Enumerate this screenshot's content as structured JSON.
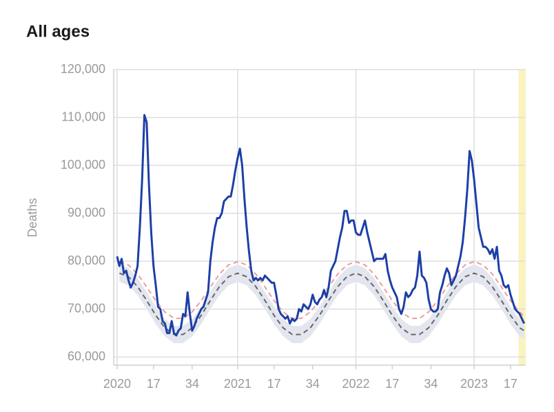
{
  "chart_data": {
    "type": "line",
    "title": "All ages",
    "y_label": "Deaths",
    "xlim": [
      -1.5,
      179.7
    ],
    "ylim": [
      58300,
      120000
    ],
    "xticks": [
      {
        "value": 0,
        "label": "2020"
      },
      {
        "value": 16,
        "label": "17"
      },
      {
        "value": 33,
        "label": "34"
      },
      {
        "value": 53,
        "label": "2021"
      },
      {
        "value": 69,
        "label": "17"
      },
      {
        "value": 86,
        "label": "34"
      },
      {
        "value": 105,
        "label": "2022"
      },
      {
        "value": 121,
        "label": "17"
      },
      {
        "value": 138,
        "label": "34"
      },
      {
        "value": 157,
        "label": "2023"
      },
      {
        "value": 173,
        "label": "17"
      }
    ],
    "xgrid": [
      0,
      53,
      105,
      157
    ],
    "yticks": [
      {
        "value": 60000,
        "label": "60,000"
      },
      {
        "value": 70000,
        "label": "70,000"
      },
      {
        "value": 80000,
        "label": "80,000"
      },
      {
        "value": 90000,
        "label": "90,000"
      },
      {
        "value": 100000,
        "label": "100,000"
      },
      {
        "value": 110000,
        "label": "110,000"
      },
      {
        "value": 120000,
        "label": "120,000"
      }
    ],
    "grid": true,
    "highlight": {
      "range": [
        176.5,
        179.7
      ],
      "color": "#fbf3bf"
    },
    "band": {
      "color": "#e3e6ee",
      "x": [
        1,
        5,
        9,
        13,
        17,
        21,
        25,
        29,
        33,
        37,
        41,
        45,
        49,
        53,
        57,
        61,
        65,
        69,
        73,
        77,
        81,
        85,
        89,
        93,
        97,
        101,
        105,
        109,
        113,
        117,
        121,
        125,
        129,
        133,
        137,
        141,
        145,
        149,
        153,
        157,
        161,
        165,
        169,
        173,
        177,
        179
      ],
      "lower": [
        75700,
        74950,
        72900,
        70000,
        66900,
        64300,
        62900,
        62900,
        64300,
        66900,
        70000,
        72900,
        74950,
        75700,
        74950,
        72900,
        70000,
        66900,
        64300,
        62900,
        62900,
        64300,
        66900,
        70000,
        72900,
        74950,
        75700,
        74950,
        72900,
        70000,
        66900,
        64300,
        62900,
        62900,
        64300,
        66900,
        70000,
        72900,
        74950,
        75700,
        74950,
        72900,
        70000,
        66900,
        64300,
        63700
      ],
      "upper": [
        79300,
        78550,
        76500,
        73600,
        70500,
        67900,
        66500,
        66500,
        67900,
        70500,
        73600,
        76500,
        78550,
        79300,
        78550,
        76500,
        73600,
        70500,
        67900,
        66500,
        66500,
        67900,
        70500,
        73600,
        76500,
        78550,
        79300,
        78550,
        76500,
        73600,
        70500,
        67900,
        66500,
        66500,
        67900,
        70500,
        73600,
        76500,
        78550,
        79300,
        78550,
        76500,
        73600,
        70500,
        67900,
        67300
      ]
    },
    "x": [
      0,
      1,
      2,
      3,
      4,
      5,
      6,
      7,
      8,
      9,
      10,
      11,
      12,
      13,
      14,
      15,
      16,
      17,
      18,
      19,
      20,
      21,
      22,
      23,
      24,
      25,
      26,
      27,
      28,
      29,
      30,
      31,
      32,
      33,
      34,
      35,
      36,
      37,
      38,
      39,
      40,
      41,
      42,
      43,
      44,
      45,
      46,
      47,
      48,
      49,
      50,
      51,
      52,
      53,
      54,
      55,
      56,
      57,
      58,
      59,
      60,
      61,
      62,
      63,
      64,
      65,
      66,
      67,
      68,
      69,
      70,
      71,
      72,
      73,
      74,
      75,
      76,
      77,
      78,
      79,
      80,
      81,
      82,
      83,
      84,
      85,
      86,
      87,
      88,
      89,
      90,
      91,
      92,
      93,
      94,
      95,
      96,
      97,
      98,
      99,
      100,
      101,
      102,
      103,
      104,
      105,
      106,
      107,
      108,
      109,
      110,
      111,
      112,
      113,
      114,
      115,
      116,
      117,
      118,
      119,
      120,
      121,
      122,
      123,
      124,
      125,
      126,
      127,
      128,
      129,
      130,
      131,
      132,
      133,
      134,
      135,
      136,
      137,
      138,
      139,
      140,
      141,
      142,
      143,
      144,
      145,
      146,
      147,
      148,
      149,
      150,
      151,
      152,
      153,
      154,
      155,
      156,
      157,
      158,
      159,
      160,
      161,
      162,
      163,
      164,
      165,
      166,
      167,
      168,
      169,
      170,
      171,
      172,
      173,
      174,
      175,
      176,
      177,
      178,
      179
    ],
    "series": [
      {
        "color": "#666666",
        "dashed": true,
        "width": 2,
        "x": [
          1,
          5,
          9,
          13,
          17,
          21,
          25,
          29,
          33,
          37,
          41,
          45,
          49,
          53,
          57,
          61,
          65,
          69,
          73,
          77,
          81,
          85,
          89,
          93,
          97,
          101,
          105,
          109,
          113,
          117,
          121,
          125,
          129,
          133,
          137,
          141,
          145,
          149,
          153,
          157,
          161,
          165,
          169,
          173,
          177,
          179
        ],
        "values": [
          77500,
          76750,
          74700,
          71800,
          68700,
          66100,
          64700,
          64700,
          66100,
          68700,
          71800,
          74700,
          76750,
          77500,
          76750,
          74700,
          71800,
          68700,
          66100,
          64700,
          64700,
          66100,
          68700,
          71800,
          74700,
          76750,
          77500,
          76750,
          74700,
          71800,
          68700,
          66100,
          64700,
          64700,
          66100,
          68700,
          71800,
          74700,
          76750,
          77500,
          76750,
          74700,
          71800,
          68700,
          66100,
          65500
        ]
      },
      {
        "color": "#ee9c9c",
        "dashed": true,
        "width": 2,
        "x": [
          1,
          5,
          9,
          13,
          17,
          21,
          25,
          29,
          33,
          37,
          41,
          45,
          49,
          53,
          57,
          61,
          65,
          69,
          73,
          77,
          81,
          85,
          89,
          93,
          97,
          101,
          105,
          109,
          113,
          117,
          121,
          125,
          129,
          133,
          137,
          141,
          145,
          149,
          153,
          157,
          161,
          165,
          169,
          173,
          177,
          179
        ],
        "values": [
          79900,
          79210,
          77310,
          74630,
          71770,
          69410,
          68070,
          68070,
          69410,
          71770,
          74630,
          77310,
          79210,
          79900,
          79210,
          77310,
          74630,
          71770,
          69410,
          68070,
          68070,
          69410,
          71770,
          74630,
          77310,
          79210,
          79900,
          79210,
          77310,
          74630,
          71770,
          69410,
          68070,
          68070,
          69410,
          71770,
          74630,
          77310,
          79210,
          79900,
          79210,
          77310,
          74630,
          71770,
          69410,
          68500
        ]
      },
      {
        "color": "#1c3fa6",
        "width": 3,
        "values": [
          81000,
          79000,
          80500,
          77500,
          78000,
          76000,
          74500,
          75500,
          77000,
          79000,
          87000,
          97000,
          110500,
          109000,
          96000,
          86000,
          79000,
          75000,
          70500,
          70000,
          67500,
          67000,
          65000,
          65000,
          67500,
          65000,
          64500,
          65500,
          66000,
          69000,
          68500,
          73500,
          69000,
          65500,
          66500,
          68000,
          69000,
          70000,
          70500,
          72000,
          73500,
          80000,
          84000,
          87000,
          89000,
          89000,
          90000,
          92500,
          93000,
          93500,
          93500,
          96000,
          99000,
          101500,
          103500,
          100000,
          93000,
          87000,
          82000,
          78000,
          76000,
          76500,
          76000,
          76500,
          76000,
          77000,
          76500,
          76000,
          75500,
          75500,
          73000,
          70000,
          69000,
          68500,
          68000,
          68500,
          67000,
          68000,
          67500,
          68000,
          70000,
          69500,
          71000,
          70500,
          70000,
          71000,
          73000,
          71500,
          71000,
          72000,
          72500,
          74000,
          72500,
          74500,
          78000,
          79000,
          80000,
          82500,
          85000,
          87000,
          90500,
          90500,
          88000,
          88500,
          88500,
          86000,
          85500,
          85500,
          87000,
          88500,
          86000,
          84000,
          82000,
          80000,
          80500,
          80500,
          80500,
          80500,
          81500,
          78000,
          76000,
          74500,
          73500,
          72500,
          70000,
          69000,
          70500,
          73500,
          72500,
          73000,
          74000,
          74500,
          77000,
          82000,
          77000,
          76500,
          75500,
          72000,
          70000,
          69500,
          69500,
          70000,
          73500,
          75000,
          77000,
          78500,
          77500,
          75000,
          76000,
          77000,
          79000,
          81000,
          84000,
          89000,
          95000,
          103000,
          101000,
          97000,
          92000,
          87000,
          85000,
          83000,
          83000,
          82500,
          81500,
          82500,
          80500,
          83000,
          78000,
          77000,
          75000,
          74500,
          75000,
          73000,
          71500,
          70000,
          69500,
          69000,
          68000,
          67000
        ]
      }
    ]
  }
}
